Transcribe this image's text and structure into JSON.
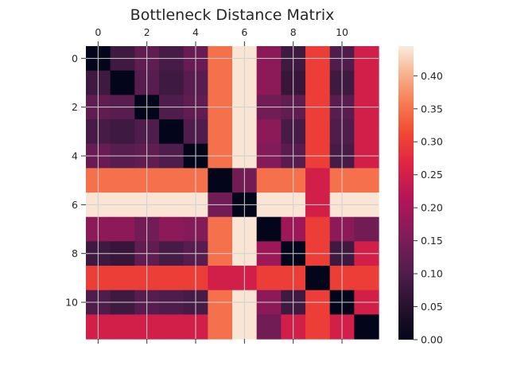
{
  "chart_data": {
    "type": "heatmap",
    "title": "Bottleneck Distance Matrix",
    "x_ticks": [
      0,
      2,
      4,
      6,
      8,
      10
    ],
    "y_ticks": [
      0,
      2,
      4,
      6,
      8,
      10
    ],
    "x_tick_position": "top",
    "grid": true,
    "colormap": "rocket",
    "vmin": 0.0,
    "vmax": 0.445,
    "colorbar_ticks": [
      0.0,
      0.05,
      0.1,
      0.15,
      0.2,
      0.25,
      0.3,
      0.35,
      0.4
    ],
    "colorbar_tick_labels": [
      "0.00",
      "0.05",
      "0.10",
      "0.15",
      "0.20",
      "0.25",
      "0.30",
      "0.35",
      "0.40"
    ],
    "rows": 12,
    "cols": 12,
    "matrix": [
      [
        0.0,
        0.08,
        0.12,
        0.09,
        0.13,
        0.35,
        0.44,
        0.17,
        0.08,
        0.3,
        0.1,
        0.25
      ],
      [
        0.08,
        0.0,
        0.11,
        0.08,
        0.11,
        0.35,
        0.44,
        0.17,
        0.07,
        0.3,
        0.08,
        0.25
      ],
      [
        0.12,
        0.11,
        0.0,
        0.1,
        0.12,
        0.35,
        0.44,
        0.14,
        0.12,
        0.3,
        0.11,
        0.25
      ],
      [
        0.09,
        0.08,
        0.1,
        0.0,
        0.1,
        0.35,
        0.44,
        0.17,
        0.09,
        0.3,
        0.1,
        0.25
      ],
      [
        0.13,
        0.11,
        0.12,
        0.1,
        0.0,
        0.35,
        0.44,
        0.16,
        0.11,
        0.3,
        0.09,
        0.25
      ],
      [
        0.35,
        0.35,
        0.35,
        0.35,
        0.35,
        0.0,
        0.14,
        0.35,
        0.35,
        0.25,
        0.35,
        0.35
      ],
      [
        0.44,
        0.44,
        0.44,
        0.44,
        0.44,
        0.14,
        0.0,
        0.44,
        0.44,
        0.25,
        0.44,
        0.44
      ],
      [
        0.17,
        0.17,
        0.14,
        0.17,
        0.16,
        0.35,
        0.44,
        0.0,
        0.19,
        0.3,
        0.17,
        0.14
      ],
      [
        0.08,
        0.07,
        0.12,
        0.09,
        0.11,
        0.35,
        0.44,
        0.19,
        0.0,
        0.3,
        0.08,
        0.25
      ],
      [
        0.3,
        0.3,
        0.3,
        0.3,
        0.3,
        0.25,
        0.25,
        0.3,
        0.3,
        0.0,
        0.3,
        0.3
      ],
      [
        0.1,
        0.08,
        0.11,
        0.1,
        0.09,
        0.35,
        0.44,
        0.17,
        0.08,
        0.3,
        0.0,
        0.25
      ],
      [
        0.25,
        0.25,
        0.25,
        0.25,
        0.25,
        0.35,
        0.44,
        0.14,
        0.25,
        0.3,
        0.25,
        0.0
      ]
    ]
  }
}
